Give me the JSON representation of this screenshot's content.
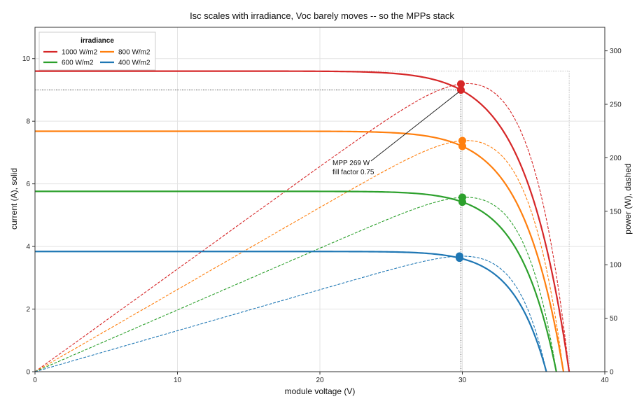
{
  "chart_data": {
    "type": "line",
    "title": "Isc scales with irradiance, Voc barely moves -- so the MPPs stack",
    "xlabel": "module voltage (V)",
    "ylabel_left": "current (A), solid",
    "ylabel_right": "power (W), dashed",
    "xlim": [
      0,
      40
    ],
    "ylim_left": [
      0,
      11
    ],
    "ylim_right": [
      0,
      322
    ],
    "x_ticks": [
      0,
      10,
      20,
      30,
      40
    ],
    "y_left_ticks": [
      0,
      2,
      4,
      6,
      8,
      10
    ],
    "y_right_ticks": [
      0,
      50,
      100,
      150,
      200,
      250,
      300
    ],
    "grid": true,
    "legend": {
      "title": "irradiance",
      "placement": "top-left",
      "entries": [
        "1000 W/m2",
        "800 W/m2",
        "600 W/m2",
        "400 W/m2"
      ]
    },
    "series": [
      {
        "name": "1000 W/m2",
        "color": "#d62728",
        "isc": 9.6,
        "voc": 37.5,
        "mpp_v": 29.9,
        "mpp_i": 9.0,
        "mpp_p": 269
      },
      {
        "name": "800 W/m2",
        "color": "#ff7f0e",
        "isc": 7.68,
        "voc": 37.1,
        "mpp_v": 30.0,
        "mpp_i": 7.2,
        "mpp_p": 216
      },
      {
        "name": "600 W/m2",
        "color": "#2ca02c",
        "isc": 5.76,
        "voc": 36.6,
        "mpp_v": 30.0,
        "mpp_i": 5.42,
        "mpp_p": 163
      },
      {
        "name": "400 W/m2",
        "color": "#1f77b4",
        "isc": 3.84,
        "voc": 35.9,
        "mpp_v": 29.8,
        "mpp_i": 3.63,
        "mpp_p": 108
      }
    ],
    "annotation": {
      "line1": "MPP 269 W",
      "line2": "fill factor 0.75"
    }
  }
}
